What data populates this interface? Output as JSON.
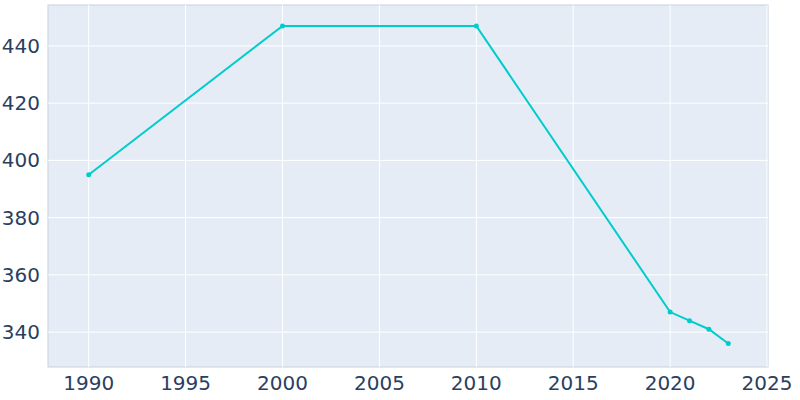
{
  "chart_data": {
    "type": "line",
    "x": [
      1990,
      2000,
      2010,
      2020,
      2021,
      2022,
      2023
    ],
    "values": [
      395,
      447,
      447,
      347,
      344,
      341,
      336
    ],
    "color": "#00cccc",
    "marker": "circle",
    "xlim": [
      1987.9,
      2025.05
    ],
    "xticks": [
      1990,
      1995,
      2000,
      2005,
      2010,
      2015,
      2020,
      2025
    ],
    "ylim": [
      327.8,
      454.3
    ],
    "yticks": [
      340,
      360,
      380,
      400,
      420,
      440
    ],
    "grid": true
  }
}
